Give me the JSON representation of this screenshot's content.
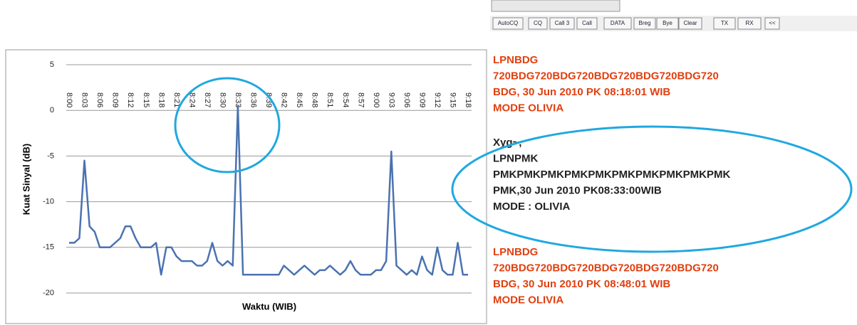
{
  "chart_data": {
    "type": "line",
    "y_label": "Kuat Sinyal (dB)",
    "x_label": "Waktu (WIB)",
    "categories": [
      "8:00",
      null,
      null,
      "8:03",
      null,
      null,
      "8:06",
      null,
      null,
      "8:09",
      null,
      null,
      "8:12",
      null,
      null,
      "8:15",
      null,
      null,
      "8:18",
      null,
      null,
      "8:21",
      null,
      null,
      "8:24",
      null,
      null,
      "8:27",
      null,
      null,
      "8:30",
      null,
      null,
      "8:33",
      null,
      null,
      "8:36",
      null,
      null,
      "8:39",
      null,
      null,
      "8:42",
      null,
      null,
      "8:45",
      null,
      null,
      "8:48",
      null,
      null,
      "8:51",
      null,
      null,
      "8:54",
      null,
      null,
      "8:57",
      null,
      null,
      "9:00",
      null,
      null,
      "9:03",
      null,
      null,
      "9:06",
      null,
      null,
      "9:09",
      null,
      null,
      "9:12",
      null,
      null,
      "9:15",
      null,
      null,
      "9:18"
    ],
    "values": [
      -14.5,
      -14.5,
      -14,
      -5.5,
      -12.7,
      -13.3,
      -15,
      -15,
      -15,
      -14.5,
      -14,
      -12.7,
      -12.7,
      -14,
      -15,
      -15,
      -15,
      -14.5,
      -18,
      -15,
      -15,
      -16,
      -16.5,
      -16.5,
      -16.5,
      -17,
      -17,
      -16.5,
      -14.5,
      -16.5,
      -17,
      -16.5,
      -17,
      0.5,
      -18,
      -18,
      -18,
      -18,
      -18,
      -18,
      -18,
      -18,
      -17,
      -17.5,
      -18,
      -17.5,
      -17,
      -17.5,
      -18,
      -17.5,
      -17.5,
      -17,
      -17.5,
      -18,
      -17.5,
      -16.5,
      -17.5,
      -18,
      -18,
      -18,
      -17.5,
      -17.5,
      -16.5,
      -4.5,
      -17,
      -17.5,
      -18,
      -17.5,
      -18,
      -16,
      -17.5,
      -18,
      -15,
      -17.5,
      -18,
      -18,
      -14.5,
      -18,
      -18
    ],
    "color": "#4a72b0",
    "ylim": [
      -20,
      5
    ],
    "yticks": [
      -20,
      -15,
      -10,
      -5,
      0,
      5
    ],
    "grid": true
  },
  "panel": {
    "buttons": [
      "AutoCQ",
      "CQ",
      "Call 3",
      "Call",
      "DATA",
      "Breg",
      "Bye",
      "Clear",
      "TX",
      "RX",
      "<<"
    ],
    "messages": [
      {
        "color": "#e04010",
        "lines": [
          "LPNBDG",
          "720BDG720BDG720BDG720BDG720BDG720",
          "BDG, 30 Jun 2010 PK 08:18:01 WIB",
          "MODE OLIVIA"
        ]
      },
      {
        "color": "#222222",
        "lines": [
          "Xyg~,",
          "LPNPMK",
          "PMKPMKPMKPMKPMKPMKPMKPMKPMKPMK",
          "PMK,30 Jun 2010 PK08:33:00WIB",
          "MODE : OLIVIA"
        ]
      },
      {
        "color": "#e04010",
        "lines": [
          "LPNBDG",
          "720BDG720BDG720BDG720BDG720BDG720",
          "BDG, 30 Jun 2010 PK 08:48:01 WIB",
          "MODE OLIVIA"
        ]
      }
    ]
  }
}
